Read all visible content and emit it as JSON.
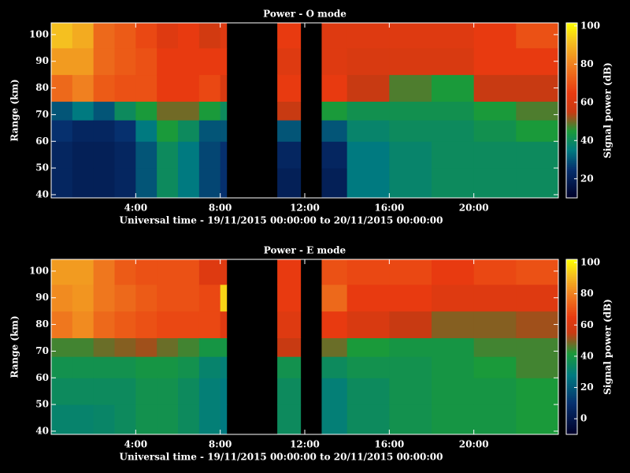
{
  "chart_data": [
    {
      "type": "heatmap",
      "title": "Power - O mode",
      "x_label": "Universal time - 19/11/2015 00:00:00 to 20/11/2015 00:00:00",
      "y_label": "Range (km)",
      "colorbar_label": "Signal power (dB)",
      "xlim": [
        0,
        24
      ],
      "ylim": [
        38.8,
        104.4
      ],
      "xticks": [
        {
          "value": 4,
          "label": "4:00"
        },
        {
          "value": 8,
          "label": "8:00"
        },
        {
          "value": 12,
          "label": "12:00"
        },
        {
          "value": 16,
          "label": "16:00"
        },
        {
          "value": 20,
          "label": "20:00"
        }
      ],
      "yticks": [
        40,
        50,
        60,
        70,
        80,
        90,
        100
      ],
      "zlim": [
        10,
        101.6
      ],
      "zticks": [
        20,
        40,
        60,
        80,
        100
      ],
      "colorscale": [
        {
          "value": 10,
          "color": "#000028"
        },
        {
          "value": 25,
          "color": "#06306e"
        },
        {
          "value": 35,
          "color": "#007a80"
        },
        {
          "value": 45,
          "color": "#1a9a3a"
        },
        {
          "value": 55,
          "color": "#c83a12"
        },
        {
          "value": 65,
          "color": "#e83a10"
        },
        {
          "value": 80,
          "color": "#f08020"
        },
        {
          "value": 92,
          "color": "#f5c020"
        },
        {
          "value": 101.6,
          "color": "#ffff00"
        }
      ],
      "xbins": [
        0,
        1,
        2,
        3,
        4,
        5,
        6,
        7,
        8,
        8.3,
        10.7,
        11.8,
        12.8,
        14,
        16,
        18,
        20,
        22,
        24
      ],
      "ybins": [
        38.8,
        50,
        60,
        68,
        75,
        85,
        95,
        104.4
      ],
      "z": [
        [
          22,
          22,
          25,
          30,
          75,
          85,
          92
        ],
        [
          20,
          20,
          22,
          35,
          80,
          85,
          88
        ],
        [
          20,
          20,
          22,
          30,
          72,
          75,
          75
        ],
        [
          22,
          22,
          25,
          40,
          70,
          72,
          72
        ],
        [
          30,
          30,
          35,
          45,
          70,
          70,
          68
        ],
        [
          40,
          40,
          45,
          50,
          65,
          65,
          62
        ],
        [
          35,
          35,
          40,
          50,
          65,
          65,
          65
        ],
        [
          28,
          28,
          30,
          45,
          68,
          65,
          58
        ],
        [
          25,
          25,
          30,
          40,
          60,
          65,
          62
        ],
        [
          null,
          null,
          null,
          null,
          null,
          null,
          null
        ],
        [
          20,
          22,
          30,
          55,
          65,
          62,
          65
        ],
        [
          null,
          null,
          null,
          null,
          null,
          null,
          null
        ],
        [
          20,
          22,
          30,
          45,
          65,
          62,
          62
        ],
        [
          35,
          35,
          38,
          42,
          55,
          60,
          62
        ],
        [
          38,
          38,
          40,
          42,
          48,
          60,
          62
        ],
        [
          40,
          40,
          40,
          42,
          45,
          60,
          62
        ],
        [
          40,
          40,
          42,
          45,
          55,
          65,
          65
        ],
        [
          40,
          40,
          45,
          48,
          55,
          65,
          70
        ]
      ]
    },
    {
      "type": "heatmap",
      "title": "Power - E mode",
      "x_label": "Universal time - 19/11/2015 00:00:00 to 20/11/2015 00:00:00",
      "y_label": "Range (km)",
      "colorbar_label": "Signal power (dB)",
      "xlim": [
        0,
        24
      ],
      "ylim": [
        38.8,
        104.4
      ],
      "xticks": [
        {
          "value": 4,
          "label": "4:00"
        },
        {
          "value": 8,
          "label": "8:00"
        },
        {
          "value": 12,
          "label": "12:00"
        },
        {
          "value": 16,
          "label": "16:00"
        },
        {
          "value": 20,
          "label": "20:00"
        }
      ],
      "yticks": [
        40,
        50,
        60,
        70,
        80,
        90,
        100
      ],
      "zlim": [
        -10,
        102
      ],
      "zticks": [
        0,
        20,
        40,
        60,
        80,
        100
      ],
      "colorscale": [
        {
          "value": -10,
          "color": "#000028"
        },
        {
          "value": 10,
          "color": "#06306e"
        },
        {
          "value": 28,
          "color": "#007a80"
        },
        {
          "value": 42,
          "color": "#1a9a3a"
        },
        {
          "value": 55,
          "color": "#c83a12"
        },
        {
          "value": 65,
          "color": "#e83a10"
        },
        {
          "value": 80,
          "color": "#f08020"
        },
        {
          "value": 92,
          "color": "#f5c020"
        },
        {
          "value": 102,
          "color": "#ffff00"
        }
      ],
      "xbins": [
        0,
        1,
        2,
        3,
        4,
        5,
        6,
        7,
        8,
        8.3,
        10.7,
        11.8,
        12.8,
        14,
        16,
        18,
        20,
        22,
        24
      ],
      "ybins": [
        38.8,
        50,
        60,
        68,
        75,
        85,
        95,
        104.4
      ],
      "z": [
        [
          32,
          35,
          38,
          45,
          78,
          82,
          85
        ],
        [
          32,
          35,
          38,
          45,
          82,
          84,
          85
        ],
        [
          33,
          35,
          38,
          48,
          75,
          78,
          78
        ],
        [
          35,
          35,
          38,
          50,
          72,
          75,
          72
        ],
        [
          38,
          38,
          40,
          52,
          70,
          72,
          70
        ],
        [
          38,
          38,
          40,
          48,
          68,
          70,
          70
        ],
        [
          35,
          35,
          38,
          45,
          68,
          70,
          70
        ],
        [
          30,
          30,
          32,
          40,
          68,
          68,
          62
        ],
        [
          28,
          28,
          30,
          40,
          62,
          95,
          62
        ],
        [
          null,
          null,
          null,
          null,
          null,
          null,
          null
        ],
        [
          35,
          35,
          38,
          55,
          62,
          65,
          65
        ],
        [
          null,
          null,
          null,
          null,
          null,
          null,
          null
        ],
        [
          30,
          30,
          35,
          48,
          65,
          75,
          70
        ],
        [
          35,
          35,
          38,
          42,
          60,
          65,
          68
        ],
        [
          38,
          38,
          38,
          40,
          55,
          65,
          68
        ],
        [
          40,
          40,
          40,
          40,
          50,
          62,
          65
        ],
        [
          40,
          40,
          42,
          45,
          50,
          62,
          68
        ],
        [
          42,
          42,
          45,
          45,
          52,
          62,
          70
        ]
      ]
    }
  ]
}
